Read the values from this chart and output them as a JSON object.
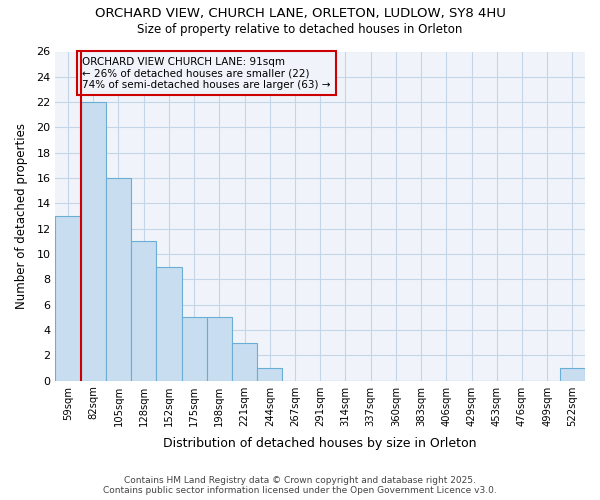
{
  "title_line1": "ORCHARD VIEW, CHURCH LANE, ORLETON, LUDLOW, SY8 4HU",
  "title_line2": "Size of property relative to detached houses in Orleton",
  "xlabel": "Distribution of detached houses by size in Orleton",
  "ylabel": "Number of detached properties",
  "footer": "Contains HM Land Registry data © Crown copyright and database right 2025.\nContains public sector information licensed under the Open Government Licence v3.0.",
  "categories": [
    "59sqm",
    "82sqm",
    "105sqm",
    "128sqm",
    "152sqm",
    "175sqm",
    "198sqm",
    "221sqm",
    "244sqm",
    "267sqm",
    "291sqm",
    "314sqm",
    "337sqm",
    "360sqm",
    "383sqm",
    "406sqm",
    "429sqm",
    "453sqm",
    "476sqm",
    "499sqm",
    "522sqm"
  ],
  "values": [
    13,
    22,
    16,
    11,
    9,
    5,
    5,
    3,
    1,
    0,
    0,
    0,
    0,
    0,
    0,
    0,
    0,
    0,
    0,
    0,
    1
  ],
  "bar_color": "#c8ddf0",
  "bar_edge_color": "#6aaed6",
  "grid_color": "#c5d5e8",
  "background_color": "#ffffff",
  "plot_bg_color": "#f0f4fa",
  "vline_x": 1,
  "vline_color": "#cc0000",
  "annotation_title": "ORCHARD VIEW CHURCH LANE: 91sqm",
  "annotation_line2": "← 26% of detached houses are smaller (22)",
  "annotation_line3": "74% of semi-detached houses are larger (63) →",
  "annotation_box_color": "#cc0000",
  "ylim": [
    0,
    26
  ],
  "yticks": [
    0,
    2,
    4,
    6,
    8,
    10,
    12,
    14,
    16,
    18,
    20,
    22,
    24,
    26
  ]
}
